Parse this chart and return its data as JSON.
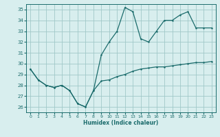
{
  "xlabel": "Humidex (Indice chaleur)",
  "ylabel": "",
  "background_color": "#d8eeee",
  "grid_color": "#a0c8c8",
  "line_color": "#1a6b6b",
  "xlim": [
    -0.5,
    23.5
  ],
  "ylim": [
    25.5,
    35.5
  ],
  "yticks": [
    26,
    27,
    28,
    29,
    30,
    31,
    32,
    33,
    34,
    35
  ],
  "xticks": [
    0,
    1,
    2,
    3,
    4,
    5,
    6,
    7,
    8,
    9,
    10,
    11,
    12,
    13,
    14,
    15,
    16,
    17,
    18,
    19,
    20,
    21,
    22,
    23
  ],
  "series1_x": [
    0,
    1,
    2,
    3,
    4,
    5,
    6,
    7,
    8,
    9,
    10,
    11,
    12,
    13,
    14,
    15,
    16,
    17,
    18,
    19,
    20,
    21,
    22,
    23
  ],
  "series1_y": [
    29.5,
    28.5,
    28.0,
    27.8,
    28.0,
    27.5,
    26.3,
    26.0,
    27.5,
    28.4,
    28.5,
    28.8,
    29.0,
    29.3,
    29.5,
    29.6,
    29.7,
    29.7,
    29.8,
    29.9,
    30.0,
    30.1,
    30.1,
    30.2
  ],
  "series2_x": [
    0,
    1,
    2,
    3,
    4,
    5,
    6,
    7,
    8,
    9,
    10,
    11,
    12,
    13,
    14,
    15,
    16,
    17,
    18,
    19,
    20,
    21,
    22,
    23
  ],
  "series2_y": [
    29.5,
    28.5,
    28.0,
    27.8,
    28.0,
    27.5,
    26.3,
    26.0,
    27.5,
    30.8,
    32.0,
    33.0,
    35.2,
    34.8,
    32.3,
    32.0,
    33.0,
    34.0,
    34.0,
    34.5,
    34.8,
    33.3,
    33.3,
    33.3
  ]
}
